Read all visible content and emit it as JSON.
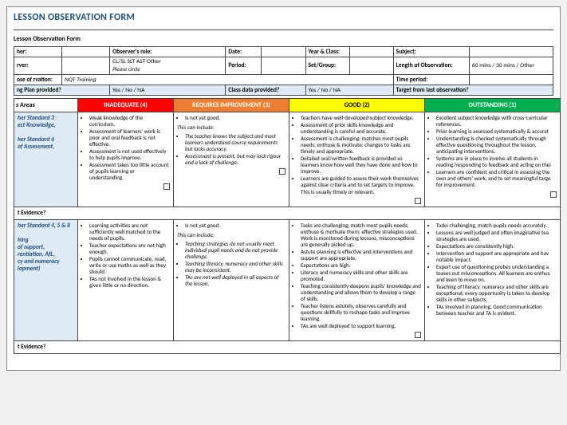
{
  "doc_title": "LESSON OBSERVATION FORM",
  "section_heading": "Lesson Observation Form",
  "meta": {
    "teacher_lbl": "her:",
    "observer_role_lbl": "Observer's role:",
    "observer_role_val": "CL/SL  SLT  AST  Other",
    "please_circle": "Please circle",
    "date_lbl": "Date:",
    "year_class_lbl": "Year & Class:",
    "subject_lbl": "Subject:",
    "observer_lbl": "rver:",
    "period_lbl": "Period:",
    "set_group_lbl": "Set/Group:",
    "length_lbl": "Length of Observation:",
    "length_val": "60 mins / 30 mins / Other",
    "purpose_lbl": "ose of rvation:",
    "purpose_val": "NQT Training",
    "time_period_lbl": "Time period:",
    "plan_lbl": "ng Plan provided?",
    "yes_no_na": "Yes / No / NA",
    "class_data_lbl": "Class data provided?",
    "target_lbl": "Target from last observation?"
  },
  "headers": {
    "focus": "s Areas",
    "inad": "INADEQUATE (4)",
    "req": "REQUIRES IMPROVEMENT (3)",
    "good": "GOOD (2)",
    "out": "OUTSTANDING (1)"
  },
  "row1": {
    "left": "her Standard 3\nect Knowledge,\n\nher Standard 6\nof Assessment,",
    "inad": [
      "Weak knowledge of the curriculum.",
      "Assessment of learners' work is poor and oral feedback is not effective.",
      "Assessment is not used effectively to help pupils improve.",
      "Assessment takes too little account of pupils learning or understanding."
    ],
    "req_lead": "Is not yet good.",
    "req_can": "This can include:",
    "req": [
      "The teacher knows the subject and most learners understand course requirements but lacks accuracy.",
      "Assessment is present, but may lack rigour and a lack of challenge."
    ],
    "good": [
      "Teachers have well-developed subject knowledge.",
      "Assessment of prior skills knowledge and understanding is careful and accurate.",
      "Assessment is challenging; matches most pupils needs; enthuse & motivate: changes to tasks are timely and appropriate.",
      "Detailed oral/written feedback is provided so learners know how well they have done and how to improve.",
      "Learners are guided to assess their work themselves against clear criteria and to set targets to improve. This is usually timely or relevant."
    ],
    "out": [
      "Excellent subject knowledge with cross-curricular references.",
      "Prior learning is assessed systematically & accurat",
      "Understanding is checked systematically through effective questioning throughout the lesson, anticipating interventions.",
      "Systems are in place to involve all students in reading/responding to feedback and acting on thei",
      "Learners are confident and critical in assessing the own and others' work, and to set meaningful targe for improvement."
    ]
  },
  "evidence_lbl": "t Evidence?",
  "row2": {
    "left": "her Standard 4, 5 & 8\n\nhing\nof support,\nrentiation, AfL,\ncy and numeracy\nlopment)",
    "inad": [
      "Learning activities are not sufficiently well matched to the needs of pupils.",
      "Teacher expectations are not high enough.",
      "Pupils cannot communicate, read, write or use maths as well as they should.",
      "TAs not involved in the lesson & given little or no direction."
    ],
    "req_lead": "Is not yet good.",
    "req_can": "This can include:",
    "req": [
      "Teaching strategies do not usually meet individual pupil needs and do not provide challenge.",
      "Teaching literacy, numeracy and other skills may be inconsistent.",
      "TAs are not well deployed in all aspects of the lesson."
    ],
    "good": [
      "Tasks are challenging; match most pupils needs; enthuse & motivate them; effective strategies used. Work is monitored during lessons, misconceptions are generally picked up.",
      "Astute planning is effective and interventions and support are appropriate.",
      "Expectations are high.",
      "Literacy and numeracy skills and other skills are promoted.",
      "Teaching consistently deepens pupils' knowledge and understanding and allows them to develop a range of skills.",
      "Teacher listens astutely, observes carefully and questions skillfully to reshape tasks and improve learning.",
      "TAs are well deployed to support learning."
    ],
    "out": [
      "Tasks challenging, match pupils needs accurately.",
      "Lessons are well judged and often imaginative tea strategies are used.",
      "Expectations are consistently high.",
      "Intervention and support are appropriate and hav notable impact.",
      "Expert use of questioning probes understanding a teases out misconceptions. All learners are enthus and keen to move on.",
      "Teaching of literacy, numeracy and other skills are exceptional; every opportunity is taken to develop skills in other subjects.",
      "TAs involved in planning.  Good communication between teacher and TA is evident."
    ]
  }
}
